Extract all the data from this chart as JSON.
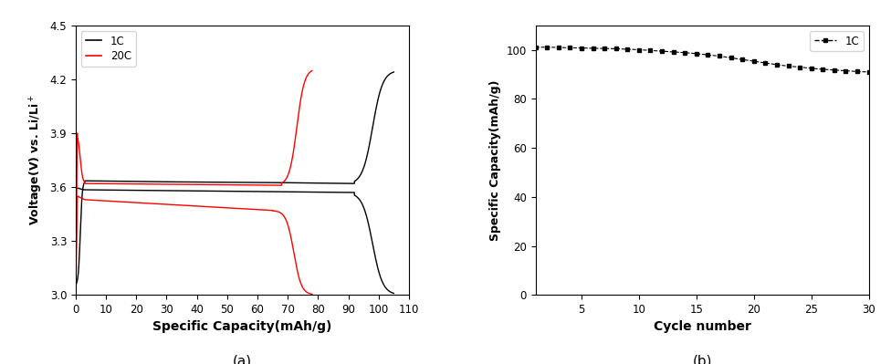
{
  "panel_a": {
    "xlabel": "Specific Capacity(mAh/g)",
    "ylabel": "Voltage(V) vs. Li/Li$^+$",
    "xlim": [
      0,
      110
    ],
    "ylim": [
      3.0,
      4.5
    ],
    "xticks": [
      0,
      10,
      20,
      30,
      40,
      50,
      60,
      70,
      80,
      90,
      100,
      110
    ],
    "yticks": [
      3.0,
      3.3,
      3.6,
      3.9,
      4.2,
      4.5
    ],
    "legend_1C": "1C",
    "legend_20C": "20C",
    "color_1C": "black",
    "color_20C": "red",
    "label": "(a)"
  },
  "panel_b": {
    "xlabel": "Cycle number",
    "ylabel": "Specific Capacity(mAh/g)",
    "xlim": [
      1,
      30
    ],
    "ylim": [
      0,
      110
    ],
    "xticks": [
      5,
      10,
      15,
      20,
      25,
      30
    ],
    "yticks": [
      0,
      20,
      40,
      60,
      80,
      100
    ],
    "legend_1C": "1C",
    "color_1C": "black",
    "cycle_numbers": [
      1,
      2,
      3,
      4,
      5,
      6,
      7,
      8,
      9,
      10,
      11,
      12,
      13,
      14,
      15,
      16,
      17,
      18,
      19,
      20,
      21,
      22,
      23,
      24,
      25,
      26,
      27,
      28,
      29,
      30
    ],
    "capacity_1C": [
      101.0,
      101.2,
      101.0,
      100.9,
      100.8,
      100.7,
      100.6,
      100.5,
      100.3,
      100.1,
      99.8,
      99.5,
      99.2,
      98.9,
      98.5,
      98.0,
      97.5,
      96.8,
      96.1,
      95.4,
      94.7,
      94.0,
      93.4,
      93.0,
      92.5,
      92.1,
      91.8,
      91.5,
      91.2,
      91.0
    ],
    "label": "(b)"
  }
}
